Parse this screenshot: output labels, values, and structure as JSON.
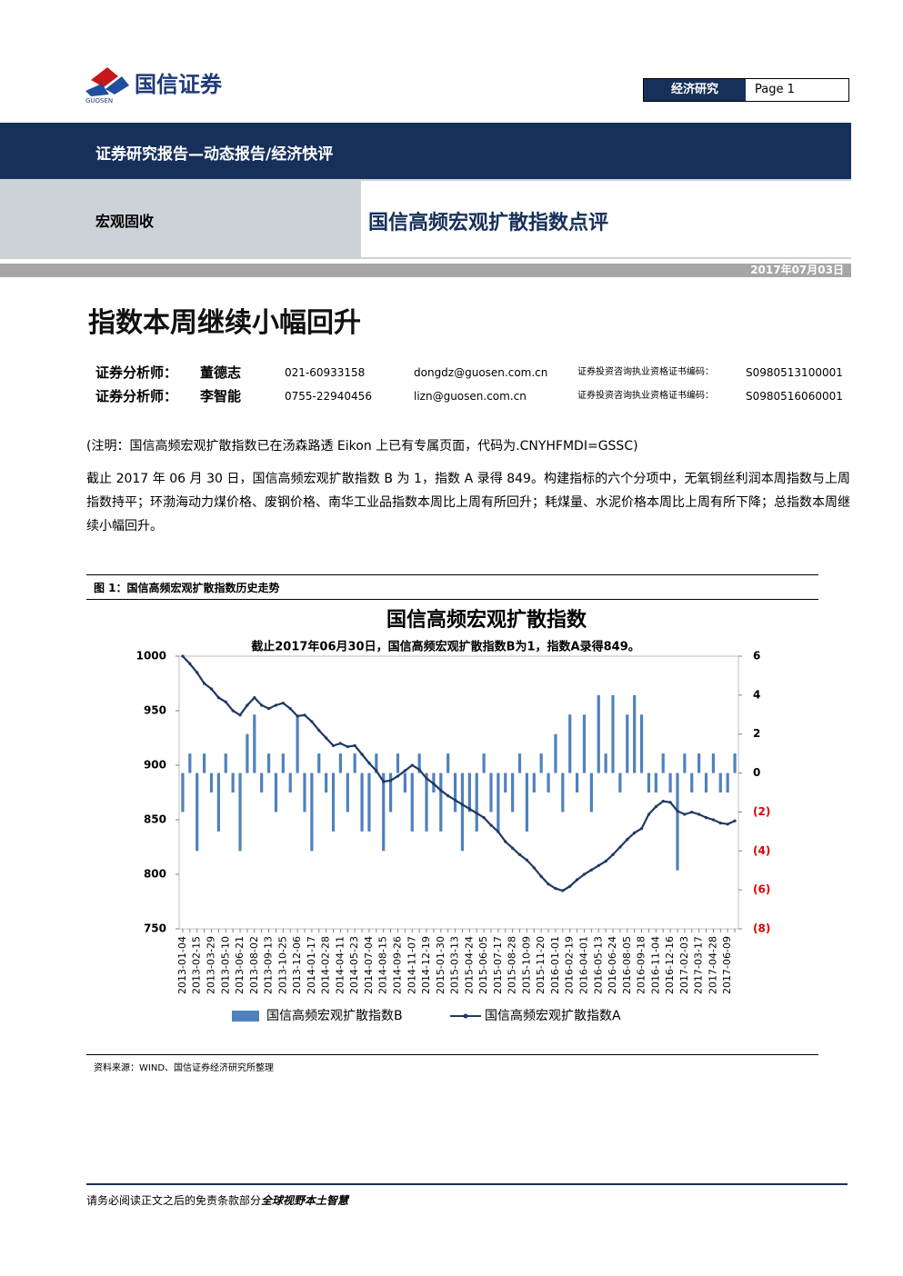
{
  "logo": {
    "name": "国信证券",
    "latin": "GUOSEN"
  },
  "header": {
    "department": "经济研究",
    "page": "Page 1",
    "report_type": "证券研究报告—动态报告/经济快评",
    "sector": "宏观固收",
    "title": "国信高频宏观扩散指数点评",
    "date": "2017年07月03日"
  },
  "headline": "指数本周继续小幅回升",
  "analysts": [
    {
      "role": "证券分析师：",
      "name": "董德志",
      "phone": "021-60933158",
      "email": "dongdz@guosen.com.cn",
      "cert_label": "证券投资咨询执业资格证书编码：",
      "cert": "S0980513100001"
    },
    {
      "role": "证券分析师：",
      "name": "李智能",
      "phone": "0755-22940456",
      "email": "lizn@guosen.com.cn",
      "cert_label": "证券投资咨询执业资格证书编码：",
      "cert": "S0980516060001"
    }
  ],
  "note": "(注明：国信高频宏观扩散指数已在汤森路透 Eikon 上已有专属页面，代码为.CNYHFMDI=GSSC)",
  "paragraph": "截止 2017 年 06 月 30 日，国信高频宏观扩散指数 B 为 1，指数 A 录得 849。构建指标的六个分项中，无氧铜丝利润本周指数与上周指数持平；环渤海动力煤价格、废钢价格、南华工业品指数本周比上周有所回升；耗煤量、水泥价格本周比上周有所下降；总指数本周继续小幅回升。",
  "figure_caption": "图 1：国信高频宏观扩散指数历史走势",
  "source": "资料来源：WIND、国信证券经济研究所整理",
  "footer": {
    "disclaimer": "请务必阅读正文之后的免责条款部分",
    "slogan": "全球视野本土智慧"
  },
  "chart_data": {
    "type": "combo",
    "title": "国信高频宏观扩散指数",
    "subtitle": "截止2017年06月30日，国信高频宏观扩散指数B为1，指数A录得849。",
    "categories": [
      "2013-01-04",
      null,
      "2013-02-15",
      null,
      "2013-03-29",
      null,
      "2013-05-10",
      null,
      "2013-06-21",
      null,
      "2013-08-02",
      null,
      "2013-09-13",
      null,
      "2013-10-25",
      null,
      "2013-12-06",
      null,
      "2014-01-17",
      null,
      "2014-02-28",
      null,
      "2014-04-11",
      null,
      "2014-05-23",
      null,
      "2014-07-04",
      null,
      "2014-08-15",
      null,
      "2014-09-26",
      null,
      "2014-11-07",
      null,
      "2014-12-19",
      null,
      "2015-01-30",
      null,
      "2015-03-13",
      null,
      "2015-04-24",
      null,
      "2015-06-05",
      null,
      "2015-07-17",
      null,
      "2015-08-28",
      null,
      "2015-10-09",
      null,
      "2015-11-20",
      null,
      "2016-01-01",
      null,
      "2016-02-19",
      null,
      "2016-04-01",
      null,
      "2016-05-13",
      null,
      "2016-06-24",
      null,
      "2016-08-05",
      null,
      "2016-09-18",
      null,
      "2016-11-04",
      null,
      "2016-12-16",
      null,
      "2017-02-03",
      null,
      "2017-03-17",
      null,
      "2017-04-28",
      null,
      "2017-06-09",
      null
    ],
    "series": [
      {
        "name": "国信高频宏观扩散指数B",
        "type": "bar",
        "axis": "y2",
        "color": "#4f81bd",
        "values": [
          -2,
          1,
          -4,
          1,
          -1,
          -3,
          1,
          -1,
          -4,
          2,
          3,
          -1,
          1,
          -2,
          1,
          -1,
          3,
          -2,
          -4,
          1,
          -1,
          -3,
          1,
          -2,
          1,
          -3,
          -3,
          1,
          -4,
          -2,
          1,
          -1,
          -3,
          1,
          -3,
          -1,
          -3,
          1,
          -2,
          -4,
          -2,
          -3,
          1,
          -2,
          -3,
          -1,
          -2,
          1,
          -3,
          -1,
          1,
          -1,
          2,
          -2,
          3,
          -1,
          3,
          -2,
          4,
          1,
          4,
          -1,
          3,
          4,
          3,
          -1,
          -1,
          1,
          -1,
          -5,
          1,
          -1,
          1,
          -1,
          1,
          -1,
          -1,
          1
        ]
      },
      {
        "name": "国信高频宏观扩散指数A",
        "type": "line",
        "color": "#1f3864",
        "values": [
          1000,
          993,
          985,
          975,
          970,
          962,
          958,
          950,
          946,
          955,
          962,
          955,
          952,
          955,
          957,
          952,
          945,
          946,
          940,
          932,
          925,
          918,
          920,
          917,
          918,
          910,
          902,
          895,
          885,
          886,
          890,
          895,
          900,
          896,
          888,
          883,
          877,
          872,
          868,
          864,
          860,
          856,
          852,
          845,
          839,
          830,
          824,
          818,
          813,
          806,
          798,
          791,
          787,
          785,
          789,
          795,
          800,
          804,
          808,
          812,
          818,
          825,
          832,
          838,
          842,
          855,
          862,
          867,
          866,
          858,
          855,
          857,
          855,
          852,
          850,
          847,
          846,
          849
        ]
      }
    ],
    "ylim": [
      750,
      1000
    ],
    "yticks": [
      750,
      800,
      850,
      900,
      950,
      1000
    ],
    "y2lim": [
      -8,
      6
    ],
    "y2ticks": [
      {
        "value": -8,
        "label": "(8)"
      },
      {
        "value": -6,
        "label": "(6)"
      },
      {
        "value": -4,
        "label": "(4)"
      },
      {
        "value": -2,
        "label": "(2)"
      },
      0,
      2,
      4,
      6
    ],
    "y2_negative_tick_color": "#e00000",
    "legend": "bottom"
  }
}
